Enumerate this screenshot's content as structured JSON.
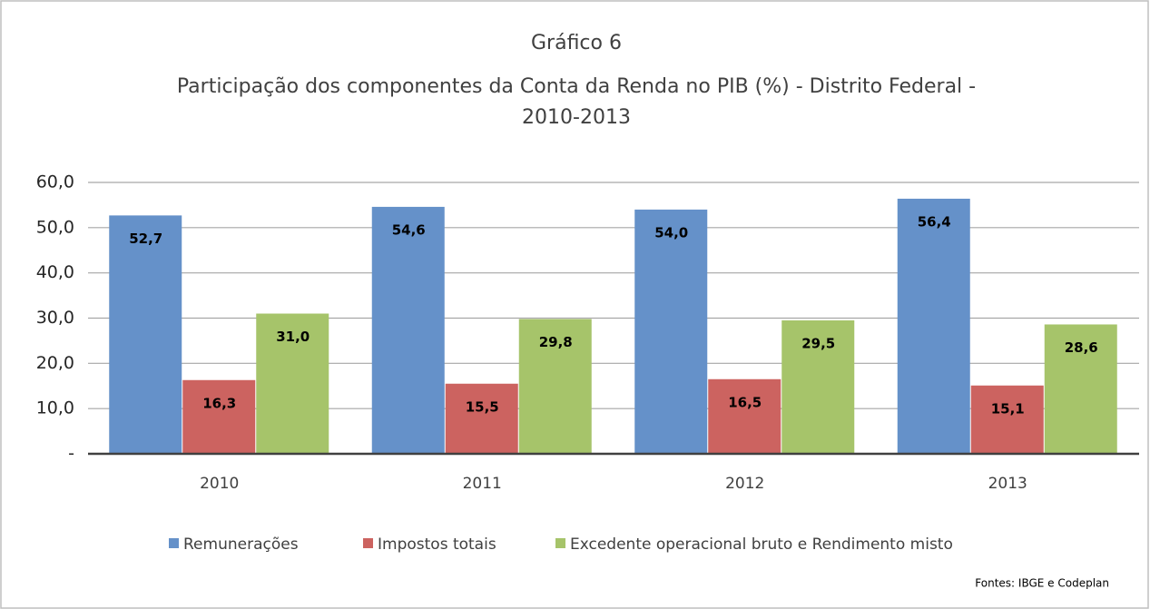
{
  "chart_data": {
    "type": "bar",
    "title": "Gráfico 6",
    "subtitle_lines": [
      "Participação dos componentes da Conta da Renda no PIB (%) - Distrito Federal -",
      "2010-2013"
    ],
    "categories": [
      "2010",
      "2011",
      "2012",
      "2013"
    ],
    "series": [
      {
        "name": "Remunerações",
        "color": "#6591c9",
        "values": [
          52.7,
          54.6,
          54.0,
          56.4
        ],
        "value_labels": [
          "52,7",
          "54,6",
          "54,0",
          "56,4"
        ]
      },
      {
        "name": "Impostos totais",
        "color": "#cc6360",
        "values": [
          16.3,
          15.5,
          16.5,
          15.1
        ],
        "value_labels": [
          "16,3",
          "15,5",
          "16,5",
          "15,1"
        ]
      },
      {
        "name": "Excedente operacional bruto e Rendimento misto",
        "color": "#a6c46a",
        "values": [
          31.0,
          29.8,
          29.5,
          28.6
        ],
        "value_labels": [
          "31,0",
          "29,8",
          "29,5",
          "28,6"
        ]
      }
    ],
    "ylim": [
      0,
      60
    ],
    "yticks": [
      {
        "value": 0,
        "label": "-"
      },
      {
        "value": 10,
        "label": "10,0"
      },
      {
        "value": 20,
        "label": "20,0"
      },
      {
        "value": 30,
        "label": "30,0"
      },
      {
        "value": 40,
        "label": "40,0"
      },
      {
        "value": 50,
        "label": "50,0"
      },
      {
        "value": 60,
        "label": "60,0"
      }
    ],
    "grid": true,
    "legend": "bottom",
    "source": "Fontes: IBGE e Codeplan"
  }
}
